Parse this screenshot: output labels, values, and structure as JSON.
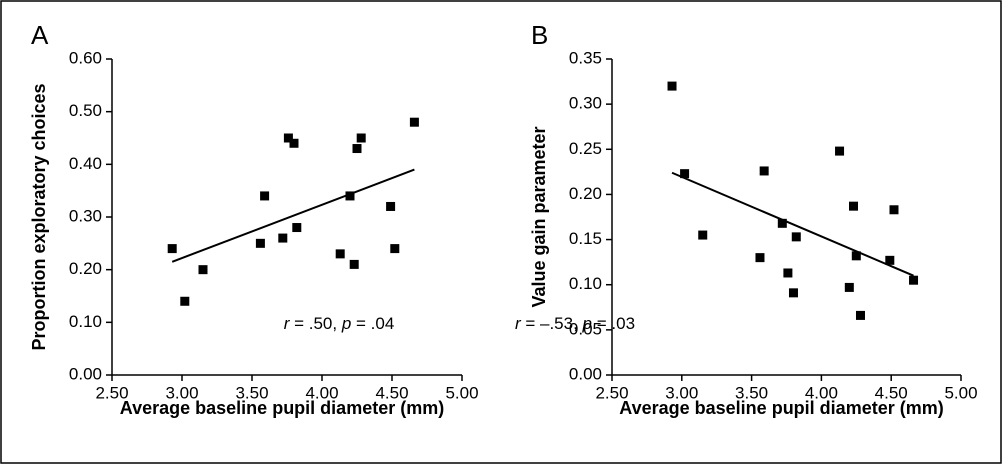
{
  "chart_data": [
    {
      "type": "scatter",
      "panel_label": "A",
      "xlabel": "Average baseline pupil diameter (mm)",
      "ylabel": "Proportion exploratory choices",
      "annotation": [
        "r",
        " = .50, ",
        "p",
        " = .04"
      ],
      "color": "#000000",
      "x": [
        2.93,
        3.02,
        3.15,
        3.56,
        3.59,
        3.72,
        3.76,
        3.8,
        3.82,
        4.13,
        4.2,
        4.23,
        4.25,
        4.28,
        4.49,
        4.52,
        4.66
      ],
      "values": [
        0.24,
        0.14,
        0.2,
        0.25,
        0.34,
        0.26,
        0.45,
        0.44,
        0.28,
        0.23,
        0.34,
        0.21,
        0.43,
        0.45,
        0.32,
        0.24,
        0.48
      ],
      "trendline": {
        "x": [
          2.93,
          4.66
        ],
        "values": [
          0.215,
          0.39
        ]
      },
      "xlim": [
        2.5,
        5.0
      ],
      "xticks": [
        {
          "value": 2.5,
          "label": "2.50"
        },
        {
          "value": 3.0,
          "label": "3.00"
        },
        {
          "value": 3.5,
          "label": "3.50"
        },
        {
          "value": 4.0,
          "label": "4.00"
        },
        {
          "value": 4.5,
          "label": "4.50"
        },
        {
          "value": 5.0,
          "label": "5.00"
        }
      ],
      "ylim": [
        0,
        0.6
      ],
      "yticks": [
        {
          "value": 0,
          "label": "0.00"
        },
        {
          "value": 0.1,
          "label": "0.10"
        },
        {
          "value": 0.2,
          "label": "0.20"
        },
        {
          "value": 0.3,
          "label": "0.30"
        },
        {
          "value": 0.4,
          "label": "0.40"
        },
        {
          "value": 0.5,
          "label": "0.50"
        },
        {
          "value": 0.6,
          "label": "0.60"
        }
      ],
      "grid": false
    },
    {
      "type": "scatter",
      "panel_label": "B",
      "xlabel": "Average baseline pupil diameter (mm)",
      "ylabel": "Value gain parameter",
      "annotation": [
        "r",
        " = –.53, ",
        "p",
        " = .03"
      ],
      "color": "#000000",
      "x": [
        2.93,
        3.02,
        3.15,
        3.56,
        3.59,
        3.72,
        3.76,
        3.8,
        3.82,
        4.13,
        4.2,
        4.23,
        4.25,
        4.28,
        4.49,
        4.52,
        4.66
      ],
      "values": [
        0.32,
        0.223,
        0.155,
        0.13,
        0.226,
        0.168,
        0.113,
        0.091,
        0.153,
        0.248,
        0.097,
        0.187,
        0.132,
        0.066,
        0.127,
        0.183,
        0.105
      ],
      "trendline": {
        "x": [
          2.93,
          4.66
        ],
        "values": [
          0.224,
          0.11
        ]
      },
      "xlim": [
        2.5,
        5.0
      ],
      "xticks": [
        {
          "value": 2.5,
          "label": "2.50"
        },
        {
          "value": 3.0,
          "label": "3.00"
        },
        {
          "value": 3.5,
          "label": "3.50"
        },
        {
          "value": 4.0,
          "label": "4.00"
        },
        {
          "value": 4.5,
          "label": "4.50"
        },
        {
          "value": 5.0,
          "label": "5.00"
        }
      ],
      "ylim": [
        0,
        0.35
      ],
      "yticks": [
        {
          "value": 0,
          "label": "0.00"
        },
        {
          "value": 0.05,
          "label": "0.05"
        },
        {
          "value": 0.1,
          "label": "0.10"
        },
        {
          "value": 0.15,
          "label": "0.15"
        },
        {
          "value": 0.2,
          "label": "0.20"
        },
        {
          "value": 0.25,
          "label": "0.25"
        },
        {
          "value": 0.3,
          "label": "0.30"
        },
        {
          "value": 0.35,
          "label": "0.35"
        }
      ],
      "grid": false
    }
  ]
}
